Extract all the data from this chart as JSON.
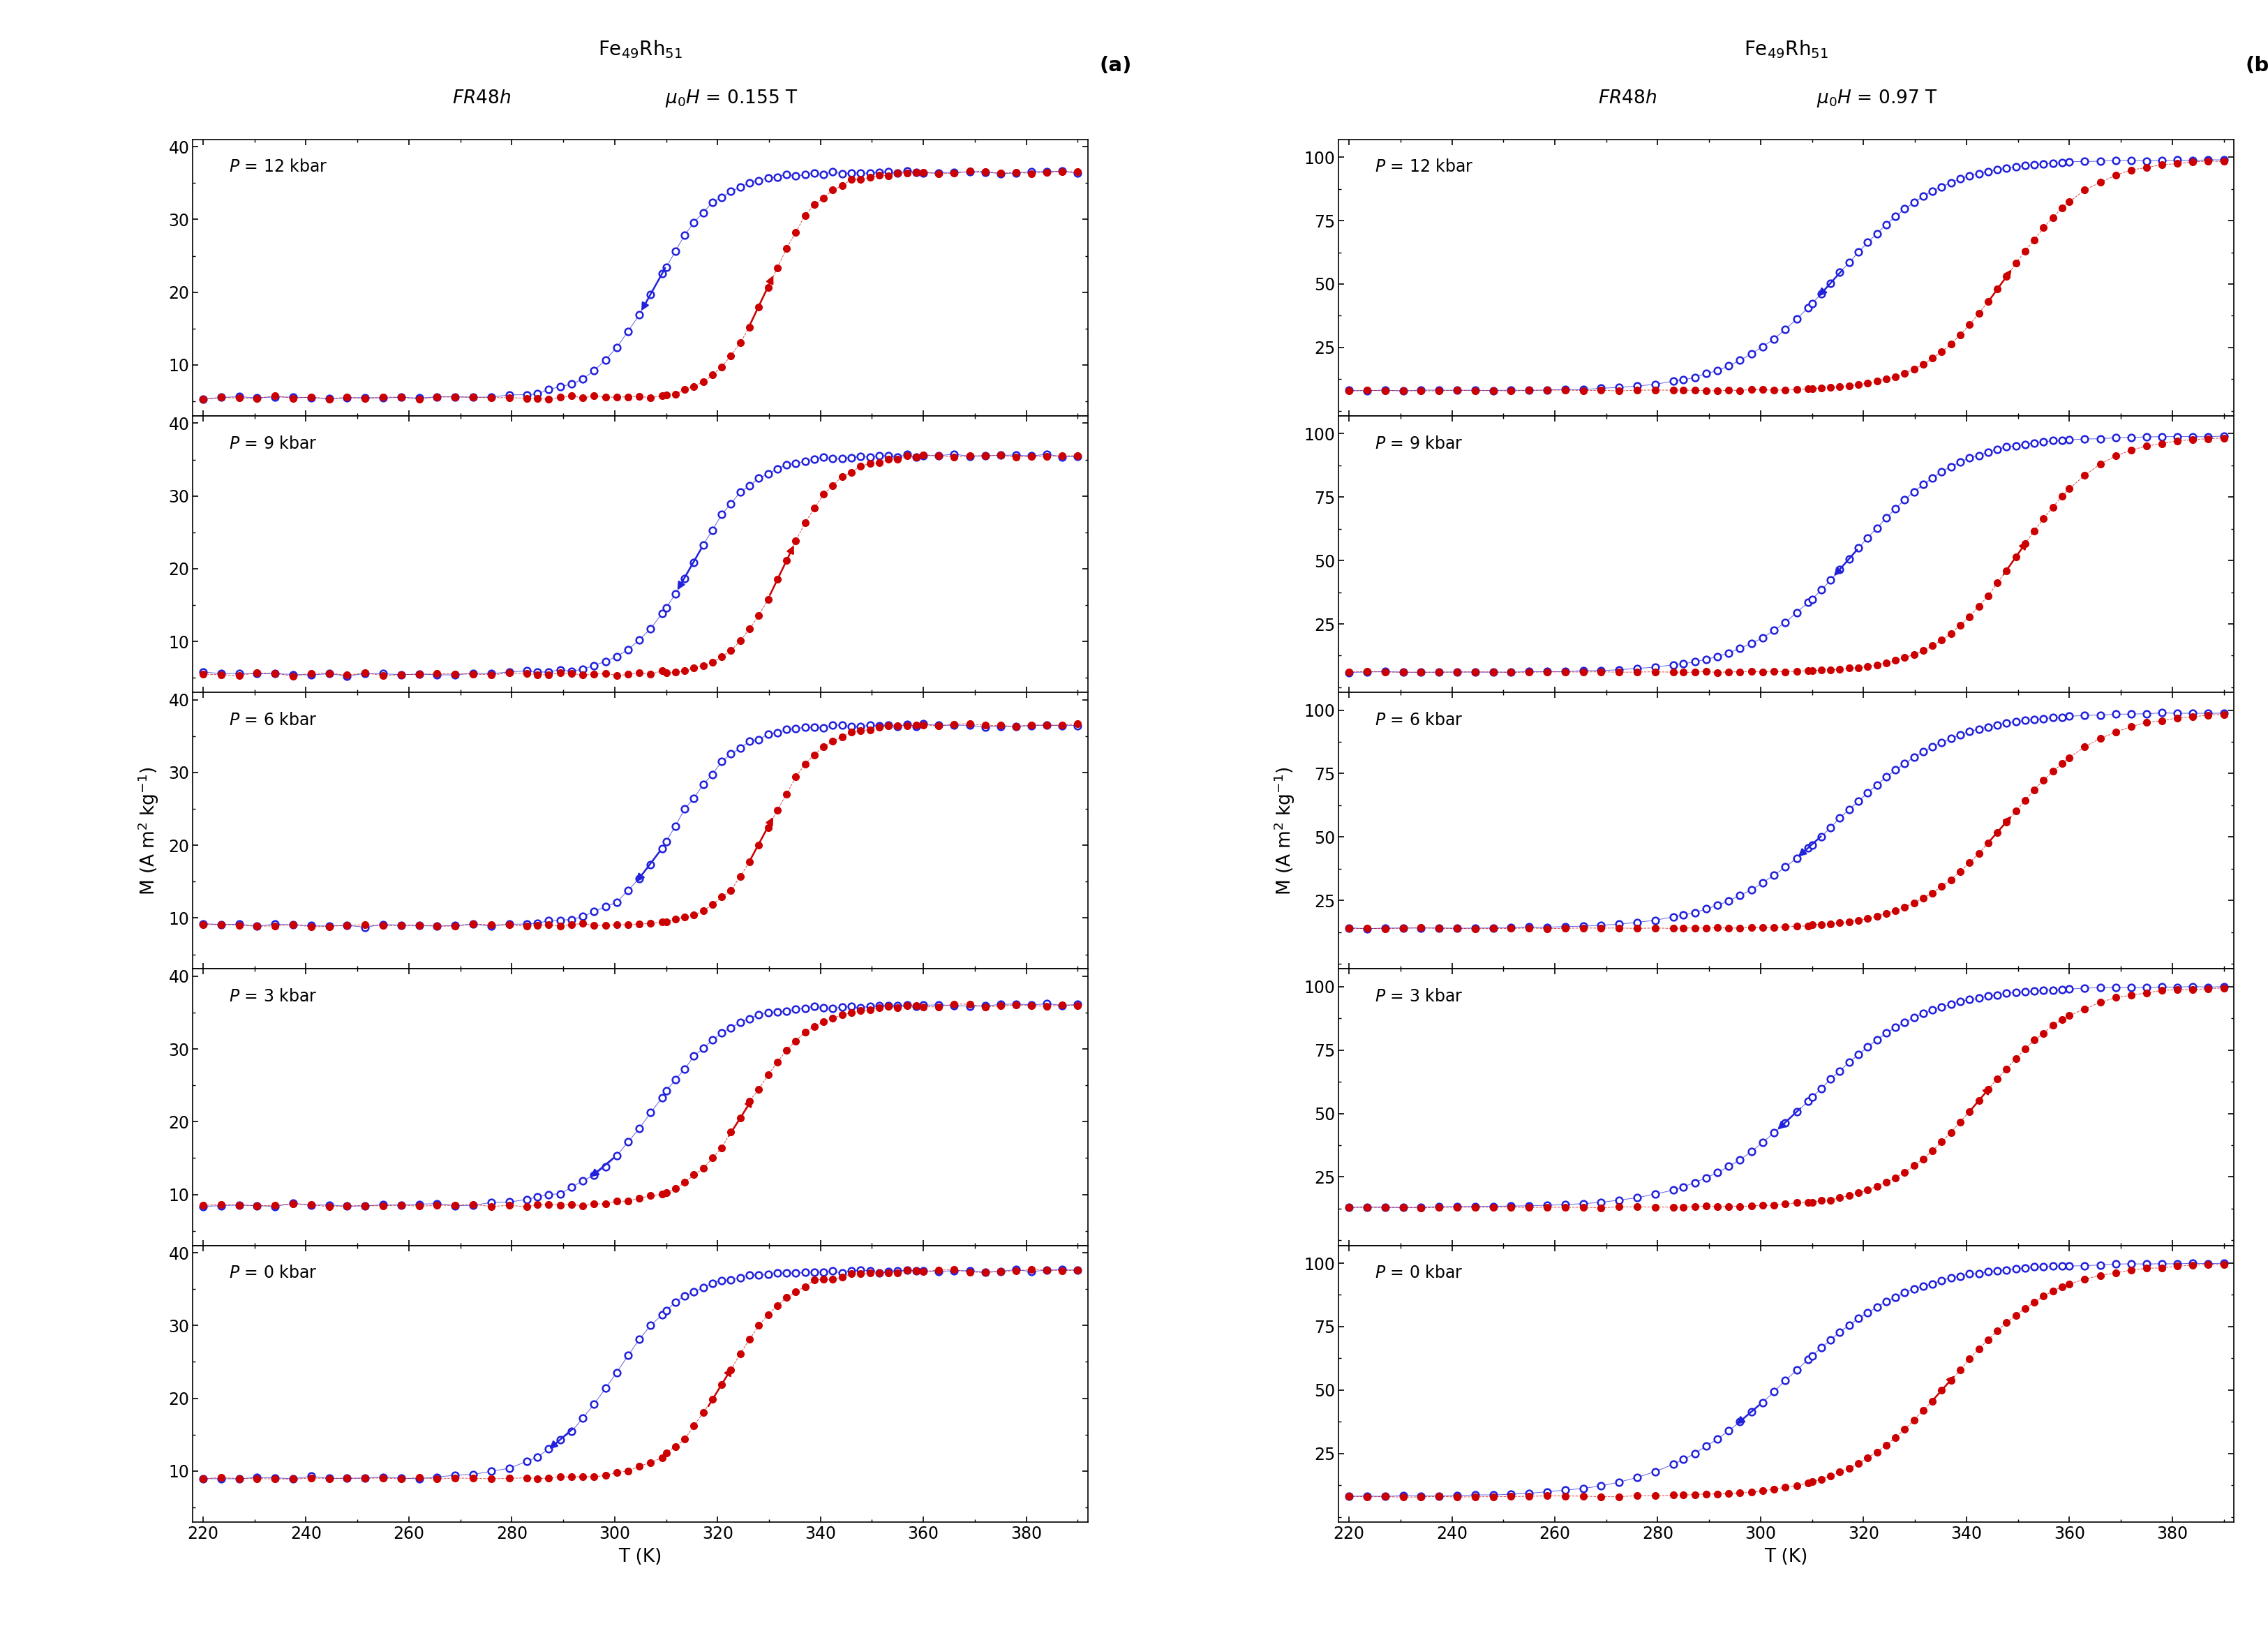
{
  "xlabel": "T (K)",
  "ylabel": "M (A m$^2$ kg$^{-1}$)",
  "pressures": [
    "P = 12 kbar",
    "P = 9 kbar",
    "P = 6 kbar",
    "P = 3 kbar",
    "P = 0 kbar"
  ],
  "yticks_a": [
    10,
    20,
    30,
    40
  ],
  "yticks_b": [
    25,
    50,
    75,
    100
  ],
  "ylim_a": [
    3,
    41
  ],
  "ylim_b": [
    -2,
    107
  ],
  "xlim": [
    218,
    392
  ],
  "xticks": [
    220,
    240,
    260,
    280,
    300,
    320,
    340,
    360,
    380
  ],
  "color_cooling": "#2222dd",
  "color_warming": "#cc0000",
  "params_a": [
    {
      "T0_cool": 308,
      "T0_warm": 330,
      "wc": 6,
      "ww": 5,
      "Ml": 5.5,
      "Mh": 36.5,
      "arrow_cool_T": 310,
      "arrow_warm_T": 326
    },
    {
      "T0_cool": 315,
      "T0_warm": 333,
      "wc": 6,
      "ww": 5,
      "Ml": 5.5,
      "Mh": 35.5,
      "arrow_cool_T": 317,
      "arrow_warm_T": 330
    },
    {
      "T0_cool": 312,
      "T0_warm": 330,
      "wc": 6,
      "ww": 5,
      "Ml": 9.0,
      "Mh": 36.5,
      "arrow_cool_T": 309,
      "arrow_warm_T": 326
    },
    {
      "T0_cool": 308,
      "T0_warm": 326,
      "wc": 7,
      "ww": 6,
      "Ml": 8.5,
      "Mh": 36.0,
      "arrow_cool_T": 300,
      "arrow_warm_T": 322
    },
    {
      "T0_cool": 300,
      "T0_warm": 322,
      "wc": 7,
      "ww": 6,
      "Ml": 9.0,
      "Mh": 37.5,
      "arrow_cool_T": 292,
      "arrow_warm_T": 318
    }
  ],
  "params_b": [
    {
      "T0_cool": 315,
      "T0_warm": 348,
      "wc": 10,
      "ww": 8,
      "Ml": 8.0,
      "Mh": 99.0,
      "arrow_cool_T": 316,
      "arrow_warm_T": 344
    },
    {
      "T0_cool": 318,
      "T0_warm": 350,
      "wc": 10,
      "ww": 8,
      "Ml": 6.0,
      "Mh": 99.0,
      "arrow_cool_T": 319,
      "arrow_warm_T": 347
    },
    {
      "T0_cool": 315,
      "T0_warm": 348,
      "wc": 11,
      "ww": 9,
      "Ml": 14.0,
      "Mh": 99.0,
      "arrow_cool_T": 312,
      "arrow_warm_T": 344
    },
    {
      "T0_cool": 310,
      "T0_warm": 343,
      "wc": 11,
      "ww": 9,
      "Ml": 13.0,
      "Mh": 100.0,
      "arrow_cool_T": 308,
      "arrow_warm_T": 340
    },
    {
      "T0_cool": 305,
      "T0_warm": 337,
      "wc": 12,
      "ww": 10,
      "Ml": 8.0,
      "Mh": 100.0,
      "arrow_cool_T": 300,
      "arrow_warm_T": 333
    }
  ]
}
